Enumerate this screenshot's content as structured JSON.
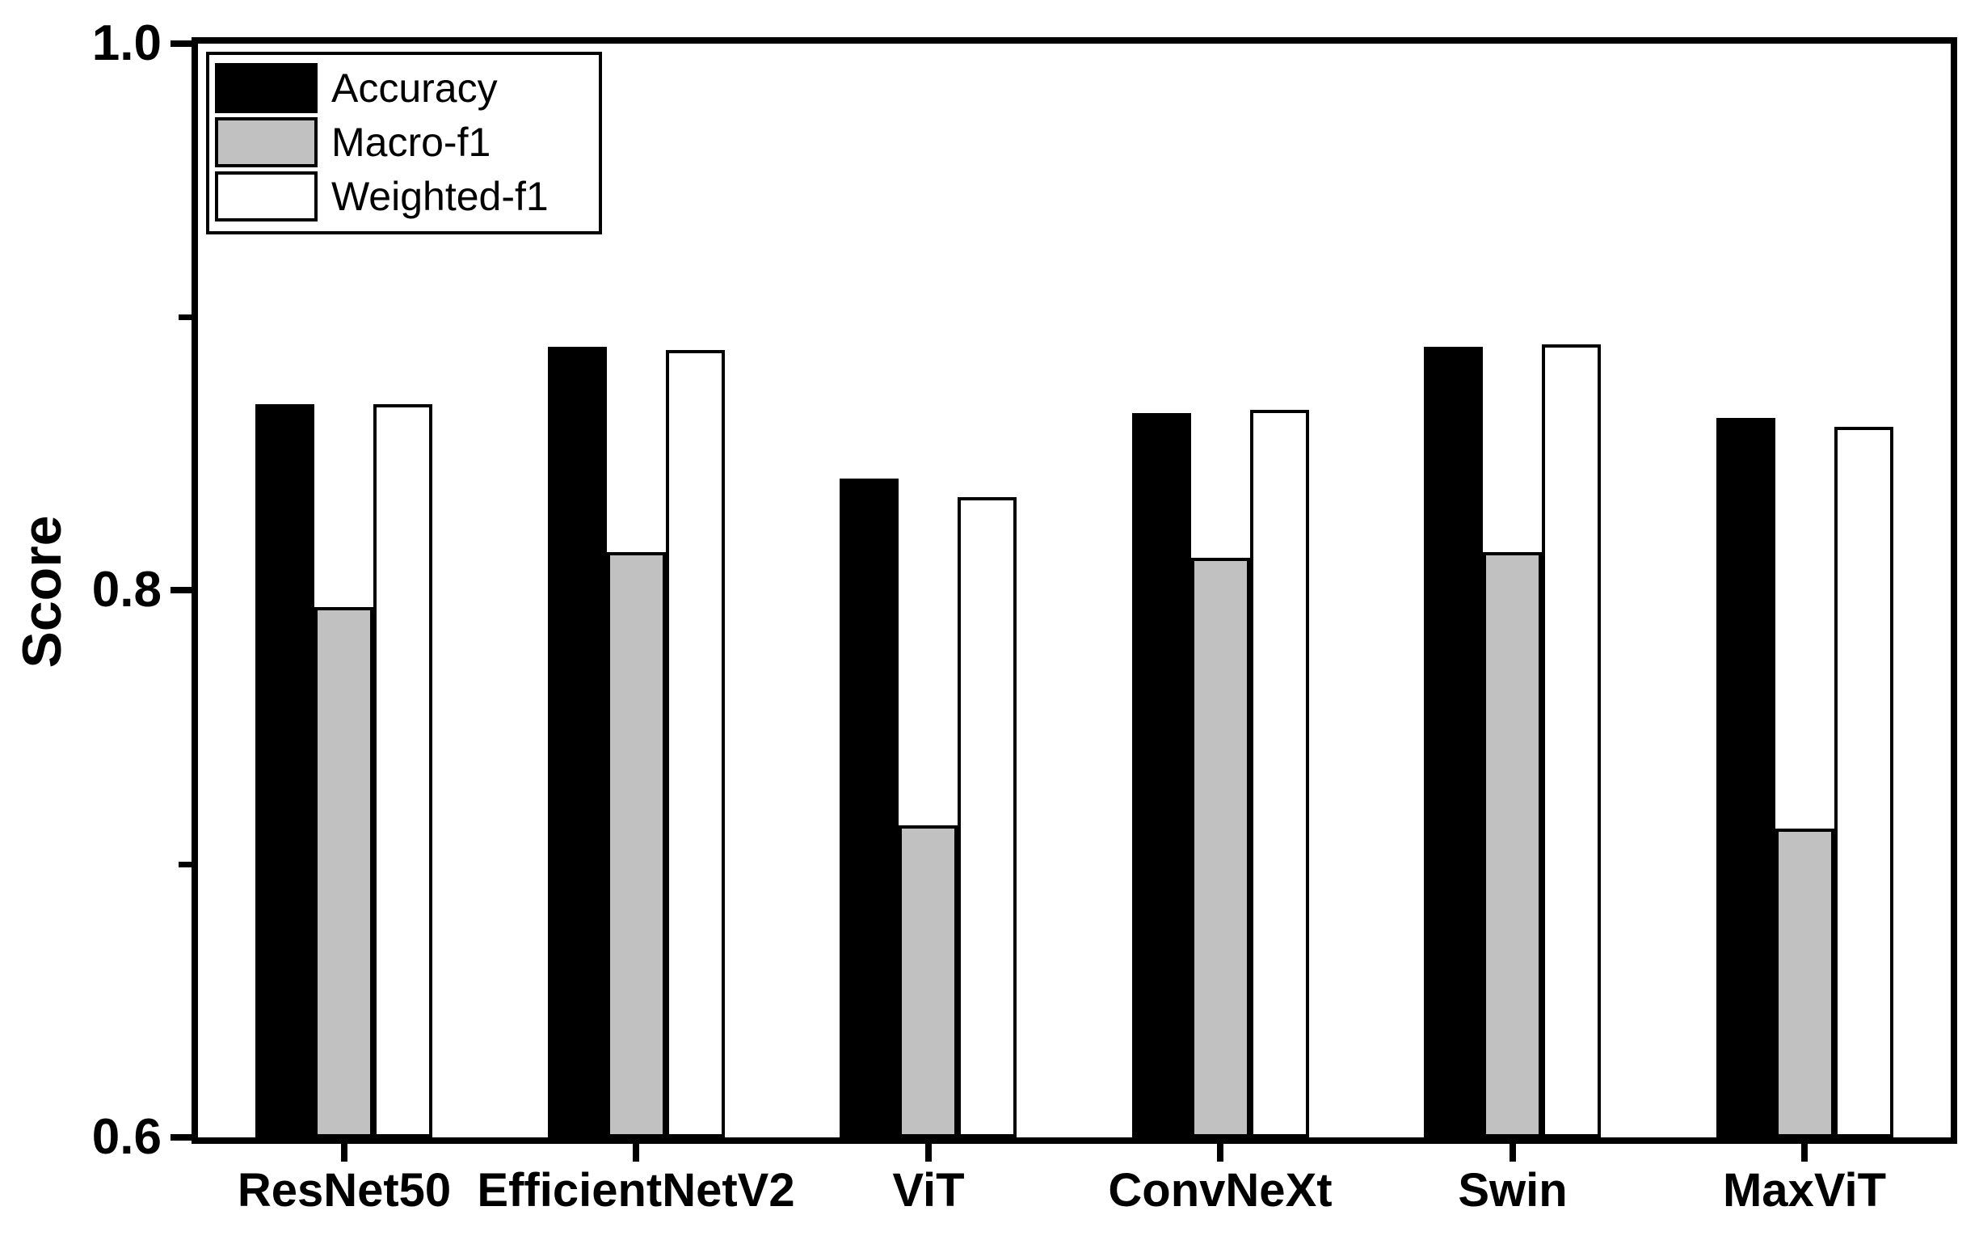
{
  "chart_data": {
    "type": "bar",
    "title": "",
    "xlabel": "",
    "ylabel": "Score",
    "categories": [
      "ResNet50",
      "EfficientNetV2",
      "ViT",
      "ConvNeXt",
      "Swin",
      "MaxViT"
    ],
    "series": [
      {
        "name": "Accuracy",
        "color": "#000000",
        "values": [
          0.868,
          0.889,
          0.841,
          0.865,
          0.889,
          0.863
        ]
      },
      {
        "name": "Macro-f1",
        "color": "#c1c1c1",
        "values": [
          0.794,
          0.814,
          0.714,
          0.812,
          0.814,
          0.713
        ]
      },
      {
        "name": "Weighted-f1",
        "color": "#ffffff",
        "values": [
          0.868,
          0.888,
          0.834,
          0.866,
          0.89,
          0.86
        ]
      }
    ],
    "ylim": [
      0.6,
      1.0
    ],
    "ytick_major": [
      1.0,
      0.8,
      0.6
    ],
    "ytick_major_labels": [
      "1.0",
      "0.8",
      "0.6"
    ],
    "ytick_minor": [
      0.9,
      0.7
    ],
    "grid": false,
    "legend_position": "top-left-inside",
    "bar_edge_color": "#000000",
    "axis_color": "#000000"
  }
}
